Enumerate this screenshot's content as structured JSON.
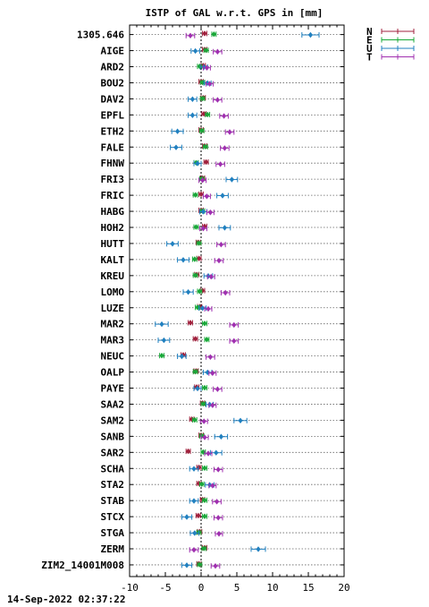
{
  "chart_data": {
    "type": "scatter",
    "title": "ISTP of GAL w.r.t. GPS in [mm]",
    "xlabel": "",
    "ylabel": "",
    "xlim": [
      -10,
      20
    ],
    "xticks": [
      -10,
      -5,
      0,
      5,
      10,
      15,
      20
    ],
    "grid": "dotted-horizontal",
    "reference_line_x": 0,
    "legend_position": "top-right",
    "legend": [
      {
        "name": "N",
        "color": "#a0203c"
      },
      {
        "name": "E",
        "color": "#18a838"
      },
      {
        "name": "U",
        "color": "#2080c0"
      },
      {
        "name": "T",
        "color": "#a030b0"
      }
    ],
    "categories": [
      "1305.646",
      "AIGE",
      "ARD2",
      "BOU2",
      "DAV2",
      "EPFL",
      "ETH2",
      "FALE",
      "FHNW",
      "FRI3",
      "FRIC",
      "HABG",
      "HOH2",
      "HUTT",
      "KALT",
      "KREU",
      "LOMO",
      "LUZE",
      "MAR2",
      "MAR3",
      "NEUC",
      "OALP",
      "PAYE",
      "SAA2",
      "SAM2",
      "SANB",
      "SAR2",
      "SCHA",
      "STA2",
      "STAB",
      "STCX",
      "STGA",
      "ZERM",
      "ZIM2_14001M008"
    ],
    "series": [
      {
        "name": "N",
        "values": [
          0.5,
          0.5,
          0.3,
          0.0,
          0.3,
          0.4,
          0.0,
          0.5,
          0.7,
          0.2,
          0.0,
          0.0,
          0.5,
          -0.4,
          -0.3,
          -0.6,
          0.2,
          -0.2,
          -1.5,
          -0.8,
          -2.5,
          -0.7,
          -0.6,
          0.2,
          -1.3,
          0.0,
          -1.8,
          -0.3,
          -0.3,
          0.2,
          -0.4,
          -0.2,
          0.5,
          -0.3
        ],
        "err": [
          0.3,
          0.3,
          0.3,
          0.3,
          0.3,
          0.3,
          0.3,
          0.3,
          0.3,
          0.3,
          0.3,
          0.3,
          0.3,
          0.3,
          0.3,
          0.3,
          0.3,
          0.3,
          0.3,
          0.3,
          0.3,
          0.3,
          0.3,
          0.3,
          0.3,
          0.3,
          0.3,
          0.3,
          0.3,
          0.3,
          0.3,
          0.3,
          0.3,
          0.3
        ]
      },
      {
        "name": "E",
        "values": [
          1.8,
          0.7,
          -0.2,
          0.2,
          0.2,
          0.9,
          0.1,
          0.6,
          -0.7,
          0.1,
          -0.8,
          0.2,
          -0.7,
          -0.3,
          -0.9,
          -0.8,
          -0.2,
          -0.5,
          0.5,
          0.8,
          -5.5,
          -0.8,
          0.5,
          0.3,
          -0.9,
          0.1,
          0.3,
          0.5,
          0.1,
          0.5,
          0.5,
          -0.3,
          0.4,
          -0.2
        ],
        "err": [
          0.3,
          0.3,
          0.3,
          0.3,
          0.3,
          0.3,
          0.3,
          0.3,
          0.3,
          0.3,
          0.3,
          0.3,
          0.3,
          0.3,
          0.3,
          0.3,
          0.3,
          0.3,
          0.3,
          0.3,
          0.3,
          0.3,
          0.3,
          0.3,
          0.3,
          0.3,
          0.3,
          0.3,
          0.3,
          0.3,
          0.3,
          0.3,
          0.3,
          0.3
        ]
      },
      {
        "name": "U",
        "values": [
          15.3,
          -0.8,
          0.4,
          0.9,
          -1.2,
          -1.2,
          -3.3,
          -3.5,
          -0.5,
          4.3,
          3.0,
          0.3,
          3.3,
          -4.0,
          -2.5,
          1.0,
          -1.8,
          0.2,
          -5.5,
          -5.2,
          -2.7,
          0.9,
          -0.5,
          1.2,
          5.5,
          2.8,
          2.1,
          -1.0,
          1.2,
          -1.0,
          -2.0,
          -0.9,
          8.0,
          -2.0
        ],
        "err": [
          1.2,
          0.6,
          0.5,
          0.5,
          0.6,
          0.6,
          0.8,
          0.8,
          0.5,
          0.8,
          0.8,
          0.5,
          0.8,
          0.8,
          0.8,
          0.6,
          0.7,
          0.5,
          0.9,
          0.8,
          0.6,
          0.6,
          0.5,
          0.5,
          0.9,
          0.9,
          0.8,
          0.6,
          0.6,
          0.6,
          0.7,
          0.6,
          1.0,
          0.7
        ]
      },
      {
        "name": "T",
        "values": [
          -1.5,
          2.3,
          0.8,
          1.2,
          2.3,
          3.2,
          4.0,
          3.3,
          2.7,
          0.2,
          0.8,
          1.3,
          0.3,
          2.8,
          2.5,
          1.4,
          3.4,
          1.0,
          4.6,
          4.6,
          1.3,
          1.6,
          2.3,
          1.6,
          0.4,
          0.5,
          1.0,
          2.4,
          1.6,
          2.2,
          2.4,
          2.5,
          -1.0,
          2.0
        ],
        "err": [
          0.6,
          0.6,
          0.5,
          0.5,
          0.6,
          0.6,
          0.6,
          0.6,
          0.6,
          0.5,
          0.5,
          0.5,
          0.5,
          0.6,
          0.6,
          0.5,
          0.6,
          0.5,
          0.6,
          0.6,
          0.6,
          0.5,
          0.6,
          0.5,
          0.5,
          0.5,
          0.5,
          0.6,
          0.5,
          0.6,
          0.6,
          0.5,
          0.6,
          0.6
        ]
      }
    ]
  },
  "footer": {
    "timestamp": "14-Sep-2022 02:37:22"
  }
}
